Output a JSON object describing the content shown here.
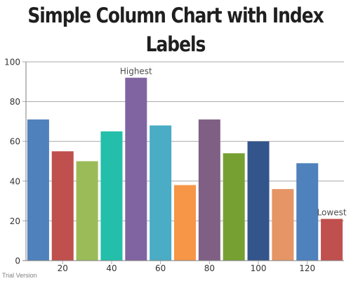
{
  "title": "Simple Column Chart with Index Labels",
  "watermark": "Trial Version",
  "chart_data": {
    "type": "bar",
    "title": "Simple Column Chart with Index Labels",
    "xlabel": "",
    "ylabel": "",
    "x": [
      10,
      20,
      30,
      40,
      50,
      60,
      70,
      80,
      90,
      100,
      110,
      120,
      130
    ],
    "values": [
      71,
      55,
      50,
      65,
      92,
      68,
      38,
      71,
      54,
      60,
      36,
      49,
      21
    ],
    "index_labels": [
      "",
      "",
      "",
      "",
      "Highest",
      "",
      "",
      "",
      "",
      "",
      "",
      "",
      "Lowest"
    ],
    "colors": [
      "#4F81BC",
      "#C0504E",
      "#9BBB58",
      "#23BFAA",
      "#8064A1",
      "#4AACC5",
      "#F79647",
      "#7F6084",
      "#77A033",
      "#33558B",
      "#E59566",
      "#4F81BC",
      "#C0504E"
    ],
    "xlim": [
      5,
      135
    ],
    "ylim": [
      0,
      100
    ],
    "x_ticks": [
      20,
      40,
      60,
      80,
      100,
      120
    ],
    "y_ticks": [
      0,
      20,
      40,
      60,
      80,
      100
    ],
    "grid": "horizontal",
    "legend": "none"
  }
}
